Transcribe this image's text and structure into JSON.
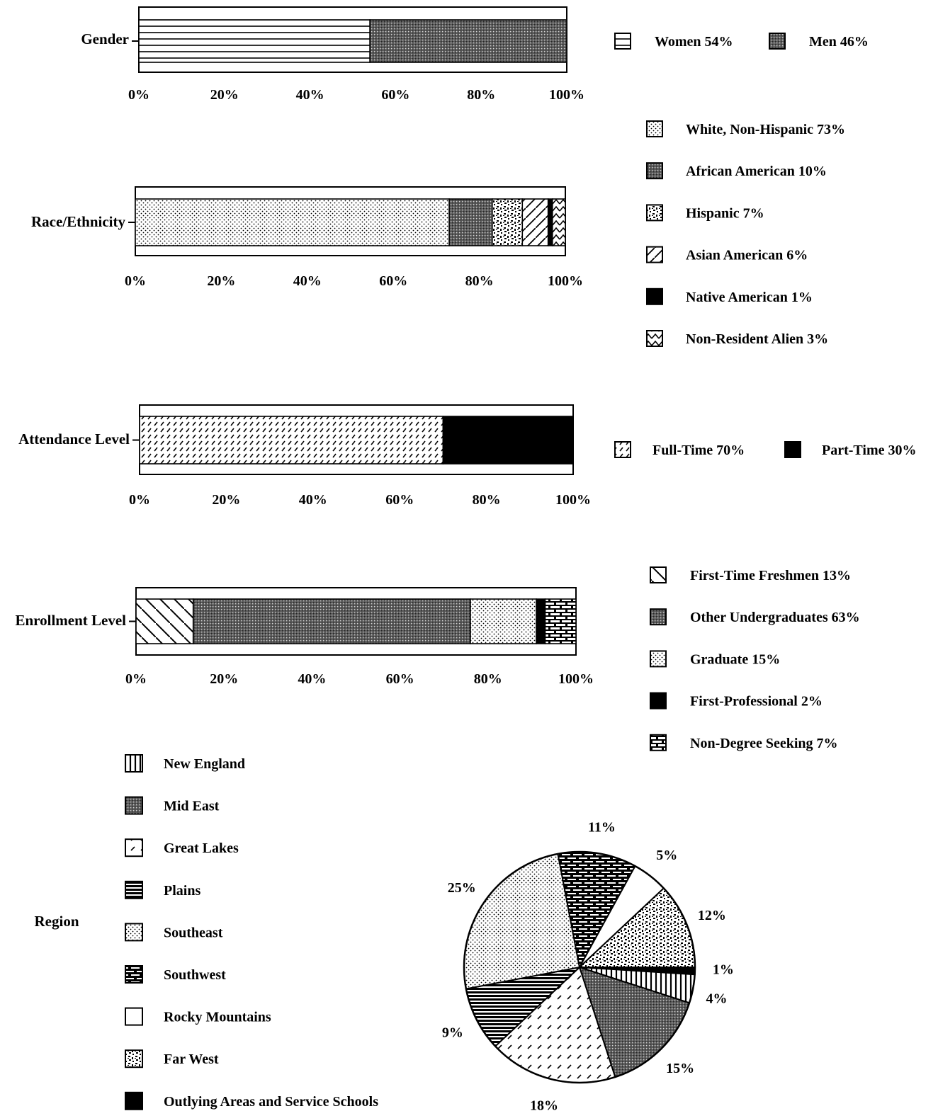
{
  "chart_data": [
    {
      "type": "bar",
      "stacked": true,
      "orientation": "horizontal",
      "category": "Gender",
      "xlim": [
        0,
        100
      ],
      "x_ticks": [
        "0%",
        "20%",
        "40%",
        "60%",
        "80%",
        "100%"
      ],
      "series": [
        {
          "label": "Women 54%",
          "value": 54,
          "pattern": "hlines"
        },
        {
          "label": "Men 46%",
          "value": 46,
          "pattern": "darkdots"
        }
      ]
    },
    {
      "type": "bar",
      "stacked": true,
      "orientation": "horizontal",
      "category": "Race/Ethnicity",
      "xlim": [
        0,
        100
      ],
      "x_ticks": [
        "0%",
        "20%",
        "40%",
        "60%",
        "80%",
        "100%"
      ],
      "series": [
        {
          "label": "White, Non-Hispanic 73%",
          "value": 73,
          "pattern": "lightdots"
        },
        {
          "label": "African American 10%",
          "value": 10,
          "pattern": "darkdots"
        },
        {
          "label": "Hispanic 7%",
          "value": 7,
          "pattern": "blotch"
        },
        {
          "label": "Asian American 6%",
          "value": 6,
          "pattern": "diag"
        },
        {
          "label": "Native American 1%",
          "value": 1,
          "pattern": "solid"
        },
        {
          "label": "Non-Resident Alien 3%",
          "value": 3,
          "pattern": "zigzag"
        }
      ]
    },
    {
      "type": "bar",
      "stacked": true,
      "orientation": "horizontal",
      "category": "Attendance Level",
      "xlim": [
        0,
        100
      ],
      "x_ticks": [
        "0%",
        "20%",
        "40%",
        "60%",
        "80%",
        "100%"
      ],
      "series": [
        {
          "label": "Full-Time 70%",
          "value": 70,
          "pattern": "finediag"
        },
        {
          "label": "Part-Time 30%",
          "value": 30,
          "pattern": "solid"
        }
      ]
    },
    {
      "type": "bar",
      "stacked": true,
      "orientation": "horizontal",
      "category": "Enrollment Level",
      "xlim": [
        0,
        100
      ],
      "x_ticks": [
        "0%",
        "20%",
        "40%",
        "60%",
        "80%",
        "100%"
      ],
      "series": [
        {
          "label": "First-Time Freshmen 13%",
          "value": 13,
          "pattern": "backdiag"
        },
        {
          "label": "Other Undergraduates 63%",
          "value": 63,
          "pattern": "darkdots"
        },
        {
          "label": "Graduate 15%",
          "value": 15,
          "pattern": "lightdots"
        },
        {
          "label": "First-Professional 2%",
          "value": 2,
          "pattern": "solid"
        },
        {
          "label": "Non-Degree Seeking 7%",
          "value": 7,
          "pattern": "brick"
        }
      ]
    },
    {
      "type": "pie",
      "category": "Region",
      "legend": [
        {
          "label": "New England",
          "pattern": "vlines"
        },
        {
          "label": "Mid East",
          "pattern": "darkdots"
        },
        {
          "label": "Great Lakes",
          "pattern": "dashdiag"
        },
        {
          "label": "Plains",
          "pattern": "hlinesdark"
        },
        {
          "label": "Southeast",
          "pattern": "lightdots"
        },
        {
          "label": "Southwest",
          "pattern": "brickdark"
        },
        {
          "label": "Rocky Mountains",
          "pattern": "white"
        },
        {
          "label": "Far West",
          "pattern": "blotch"
        },
        {
          "label": "Outlying Areas and Service Schools",
          "pattern": "solid"
        }
      ],
      "slices": [
        {
          "region": "Outlying Areas and Service Schools",
          "value": 1,
          "label": "1%",
          "pattern": "solid"
        },
        {
          "region": "New England",
          "value": 4,
          "label": "4%",
          "pattern": "vlines"
        },
        {
          "region": "Mid East",
          "value": 15,
          "label": "15%",
          "pattern": "darkdots"
        },
        {
          "region": "Great Lakes",
          "value": 18,
          "label": "18%",
          "pattern": "dashdiag"
        },
        {
          "region": "Plains",
          "value": 9,
          "label": "9%",
          "pattern": "hlinesdark"
        },
        {
          "region": "Southeast",
          "value": 25,
          "label": "25%",
          "pattern": "lightdots"
        },
        {
          "region": "Southwest",
          "value": 11,
          "label": "11%",
          "pattern": "brickdark"
        },
        {
          "region": "Rocky Mountains",
          "value": 5,
          "label": "5%",
          "pattern": "white"
        },
        {
          "region": "Far West",
          "value": 12,
          "label": "12%",
          "pattern": "blotch"
        }
      ]
    }
  ]
}
